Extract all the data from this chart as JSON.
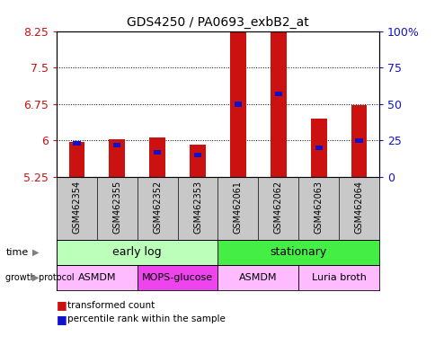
{
  "title": "GDS4250 / PA0693_exbB2_at",
  "samples": [
    "GSM462354",
    "GSM462355",
    "GSM462352",
    "GSM462353",
    "GSM462061",
    "GSM462062",
    "GSM462063",
    "GSM462064"
  ],
  "transformed_counts": [
    5.97,
    6.02,
    6.07,
    5.92,
    8.27,
    8.42,
    6.45,
    6.72
  ],
  "percentile_ranks": [
    23,
    22,
    17,
    15,
    50,
    57,
    20,
    25
  ],
  "ymin": 5.25,
  "ymax": 8.25,
  "yticks": [
    5.25,
    6.0,
    6.75,
    7.5,
    8.25
  ],
  "ytick_labels": [
    "5.25",
    "6",
    "6.75",
    "7.5",
    "8.25"
  ],
  "y2ticks": [
    0,
    25,
    50,
    75,
    100
  ],
  "y2tick_labels": [
    "0",
    "25",
    "50",
    "75",
    "100%"
  ],
  "red_color": "#cc1111",
  "blue_color": "#1111cc",
  "time_groups": [
    {
      "label": "early log",
      "start": 0,
      "end": 4,
      "color": "#bbffbb"
    },
    {
      "label": "stationary",
      "start": 4,
      "end": 8,
      "color": "#44ee44"
    }
  ],
  "protocol_groups": [
    {
      "label": "ASMDM",
      "start": 0,
      "end": 2,
      "color": "#ffbbff"
    },
    {
      "label": "MOPS-glucose",
      "start": 2,
      "end": 4,
      "color": "#ee44ee"
    },
    {
      "label": "ASMDM",
      "start": 4,
      "end": 6,
      "color": "#ffbbff"
    },
    {
      "label": "Luria broth",
      "start": 6,
      "end": 8,
      "color": "#ffbbff"
    }
  ],
  "bar_width": 0.4,
  "blue_bar_width": 0.18
}
